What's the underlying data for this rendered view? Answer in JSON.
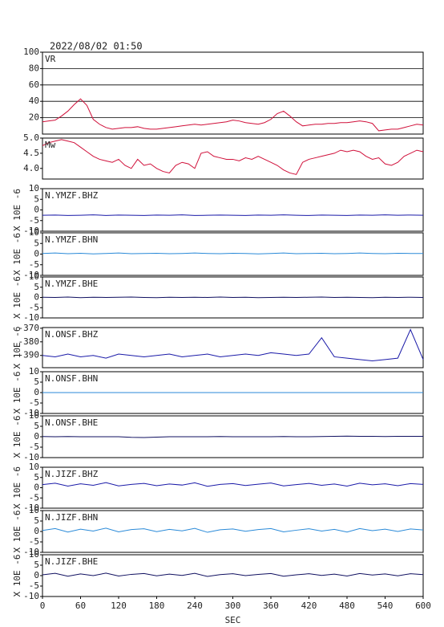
{
  "title": "2022/08/02 01:50",
  "chart_data": [
    {
      "type": "line",
      "label": "VR",
      "color": "#d0103a",
      "xlim": [
        0,
        600
      ],
      "ylim": [
        0,
        100
      ],
      "yticks": [
        20,
        40,
        60,
        80,
        100
      ],
      "grid": true,
      "x": [
        0,
        10,
        20,
        30,
        40,
        50,
        60,
        70,
        80,
        90,
        100,
        110,
        120,
        130,
        140,
        150,
        160,
        170,
        180,
        190,
        200,
        210,
        220,
        230,
        240,
        250,
        260,
        270,
        280,
        290,
        300,
        310,
        320,
        330,
        340,
        350,
        360,
        370,
        380,
        390,
        400,
        410,
        420,
        430,
        440,
        450,
        460,
        470,
        480,
        490,
        500,
        510,
        520,
        530,
        540,
        550,
        560,
        570,
        580,
        590,
        600
      ],
      "values": [
        15,
        16,
        17,
        22,
        28,
        36,
        43,
        35,
        18,
        12,
        8,
        6,
        7,
        8,
        8,
        9,
        7,
        6,
        6,
        7,
        8,
        9,
        10,
        11,
        12,
        11,
        12,
        13,
        14,
        15,
        17,
        16,
        14,
        13,
        12,
        14,
        18,
        25,
        28,
        22,
        15,
        10,
        11,
        12,
        12,
        13,
        13,
        14,
        14,
        15,
        16,
        15,
        13,
        4,
        5,
        6,
        6,
        8,
        10,
        12,
        11
      ]
    },
    {
      "type": "line",
      "label": "Mw",
      "color": "#d0103a",
      "xlim": [
        0,
        600
      ],
      "ylim": [
        3.65,
        5.0
      ],
      "yticks": [
        {
          "value": 5,
          "label": "5.0"
        },
        4.5,
        {
          "value": 4,
          "label": "4.0"
        }
      ],
      "grid": false,
      "x": [
        0,
        10,
        20,
        30,
        40,
        50,
        60,
        70,
        80,
        90,
        100,
        110,
        120,
        130,
        140,
        150,
        160,
        170,
        180,
        190,
        200,
        210,
        220,
        230,
        240,
        250,
        260,
        270,
        280,
        290,
        300,
        310,
        320,
        330,
        340,
        350,
        360,
        370,
        380,
        390,
        400,
        410,
        420,
        430,
        440,
        450,
        460,
        470,
        480,
        490,
        500,
        510,
        520,
        530,
        540,
        550,
        560,
        570,
        580,
        590,
        600
      ],
      "values": [
        4.75,
        4.85,
        4.9,
        4.95,
        4.9,
        4.85,
        4.7,
        4.55,
        4.4,
        4.3,
        4.25,
        4.2,
        4.3,
        4.1,
        4.0,
        4.3,
        4.1,
        4.15,
        4.0,
        3.9,
        3.85,
        4.1,
        4.2,
        4.15,
        4.0,
        4.5,
        4.55,
        4.4,
        4.35,
        4.3,
        4.3,
        4.25,
        4.35,
        4.3,
        4.4,
        4.3,
        4.2,
        4.1,
        3.95,
        3.85,
        3.8,
        4.2,
        4.3,
        4.35,
        4.4,
        4.45,
        4.5,
        4.6,
        4.55,
        4.6,
        4.55,
        4.4,
        4.3,
        4.35,
        4.15,
        4.1,
        4.2,
        4.4,
        4.5,
        4.6,
        4.55
      ]
    },
    {
      "type": "line",
      "label": "N.YMZF.BHZ",
      "ylabel": "X 10E -6",
      "color": "#1a1aa8",
      "xlim": [
        0,
        600
      ],
      "ylim": [
        -10,
        10
      ],
      "yticks": [
        -10,
        -5,
        0,
        5,
        10
      ],
      "grid": false,
      "x": [
        0,
        20,
        40,
        60,
        80,
        100,
        120,
        140,
        160,
        180,
        200,
        220,
        240,
        260,
        280,
        300,
        320,
        340,
        360,
        380,
        400,
        420,
        440,
        460,
        480,
        500,
        520,
        540,
        560,
        580,
        600
      ],
      "values": [
        -2.5,
        -2.4,
        -2.6,
        -2.5,
        -2.3,
        -2.6,
        -2.4,
        -2.5,
        -2.6,
        -2.4,
        -2.5,
        -2.3,
        -2.6,
        -2.5,
        -2.4,
        -2.5,
        -2.6,
        -2.4,
        -2.5,
        -2.3,
        -2.5,
        -2.6,
        -2.4,
        -2.5,
        -2.6,
        -2.4,
        -2.5,
        -2.3,
        -2.5,
        -2.4,
        -2.5
      ]
    },
    {
      "type": "line",
      "label": "N.YMZF.BHN",
      "ylabel": "X 10E -6",
      "color": "#2a8ad8",
      "xlim": [
        0,
        600
      ],
      "ylim": [
        -10,
        10
      ],
      "yticks": [
        -10,
        -5,
        0,
        5,
        10
      ],
      "grid": false,
      "x": [
        0,
        20,
        40,
        60,
        80,
        100,
        120,
        140,
        160,
        180,
        200,
        220,
        240,
        260,
        280,
        300,
        320,
        340,
        360,
        380,
        400,
        420,
        440,
        460,
        480,
        500,
        520,
        540,
        560,
        580,
        600
      ],
      "values": [
        0.3,
        0.5,
        0.2,
        0.4,
        0.1,
        0.3,
        0.5,
        0.2,
        0.3,
        0.4,
        0.2,
        0.3,
        0.5,
        0.3,
        0.2,
        0.4,
        0.3,
        0.1,
        0.3,
        0.5,
        0.2,
        0.3,
        0.4,
        0.2,
        0.3,
        0.5,
        0.3,
        0.2,
        0.4,
        0.3,
        0.3
      ]
    },
    {
      "type": "line",
      "label": "N.YMZF.BHE",
      "ylabel": "X 10E -6",
      "color": "#101060",
      "xlim": [
        0,
        600
      ],
      "ylim": [
        -10,
        10
      ],
      "yticks": [
        -10,
        -5,
        0,
        5,
        10
      ],
      "grid": false,
      "x": [
        0,
        20,
        40,
        60,
        80,
        100,
        120,
        140,
        160,
        180,
        200,
        220,
        240,
        260,
        280,
        300,
        320,
        340,
        360,
        380,
        400,
        420,
        440,
        460,
        480,
        500,
        520,
        540,
        560,
        580,
        600
      ],
      "values": [
        0.1,
        0,
        0.2,
        -0.1,
        0.1,
        0,
        0.1,
        0.2,
        0,
        -0.1,
        0.1,
        0,
        0.1,
        0,
        0.2,
        0,
        0.1,
        -0.1,
        0,
        0.1,
        0,
        0.1,
        0.2,
        0,
        0.1,
        0,
        -0.1,
        0.1,
        0,
        0.1,
        0
      ]
    },
    {
      "type": "line",
      "label": "N.ONSF.BHZ",
      "ylabel": "X 10E -6",
      "color": "#1a1aa8",
      "xlim": [
        0,
        600
      ],
      "ylim": [
        -399,
        -369.5
      ],
      "yticks": [
        -370,
        -380,
        -390
      ],
      "grid": false,
      "x": [
        0,
        20,
        40,
        60,
        80,
        100,
        120,
        140,
        160,
        180,
        200,
        220,
        240,
        260,
        280,
        300,
        320,
        340,
        360,
        380,
        400,
        420,
        440,
        460,
        480,
        500,
        520,
        540,
        560,
        580,
        600
      ],
      "values": [
        -390,
        -391,
        -389,
        -391,
        -390,
        -392,
        -389,
        -390,
        -391,
        -390,
        -389,
        -391,
        -390,
        -389,
        -391,
        -390,
        -389,
        -390,
        -388,
        -389,
        -390,
        -389,
        -377,
        -391,
        -392,
        -393,
        -394,
        -393,
        -392,
        -371,
        -393
      ]
    },
    {
      "type": "line",
      "label": "N.ONSF.BHN",
      "ylabel": "X 10E -6",
      "color": "#2a8ad8",
      "xlim": [
        0,
        600
      ],
      "ylim": [
        -10,
        10
      ],
      "yticks": [
        -10,
        -5,
        0,
        5,
        10
      ],
      "grid": false,
      "x": [
        0,
        20,
        40,
        60,
        80,
        100,
        120,
        140,
        160,
        180,
        200,
        220,
        240,
        260,
        280,
        300,
        320,
        340,
        360,
        380,
        400,
        420,
        440,
        460,
        480,
        500,
        520,
        540,
        560,
        580,
        600
      ],
      "values": [
        0,
        0,
        0,
        0,
        0,
        0,
        0,
        0,
        0,
        0,
        0,
        0,
        0,
        0,
        0,
        0,
        0,
        0,
        0,
        0,
        0,
        0,
        0,
        0,
        0,
        0,
        0,
        0,
        0,
        0,
        0
      ]
    },
    {
      "type": "line",
      "label": "N.ONSF.BHE",
      "ylabel": "X 10E -6",
      "color": "#101060",
      "xlim": [
        0,
        600
      ],
      "ylim": [
        -10,
        10
      ],
      "yticks": [
        -10,
        -5,
        0,
        5,
        10
      ],
      "grid": false,
      "x": [
        0,
        20,
        40,
        60,
        80,
        100,
        120,
        140,
        160,
        180,
        200,
        220,
        240,
        260,
        280,
        300,
        320,
        340,
        360,
        380,
        400,
        420,
        440,
        460,
        480,
        500,
        520,
        540,
        560,
        580,
        600
      ],
      "values": [
        0.1,
        0,
        0.1,
        0,
        0,
        0,
        0,
        -0.3,
        -0.4,
        -0.2,
        0,
        0,
        0,
        0,
        0.1,
        0,
        0,
        0,
        0,
        0.1,
        0,
        0,
        0.1,
        0.2,
        0.3,
        0.2,
        0.2,
        0.1,
        0.2,
        0.2,
        0.2
      ]
    },
    {
      "type": "line",
      "label": "N.JIZF.BHZ",
      "ylabel": "X 10E -6",
      "color": "#1a1aa8",
      "xlim": [
        0,
        600
      ],
      "ylim": [
        -10,
        10
      ],
      "yticks": [
        -10,
        -5,
        0,
        5,
        10
      ],
      "grid": false,
      "x": [
        0,
        20,
        40,
        60,
        80,
        100,
        120,
        140,
        160,
        180,
        200,
        220,
        240,
        260,
        280,
        300,
        320,
        340,
        360,
        380,
        400,
        420,
        440,
        460,
        480,
        500,
        520,
        540,
        560,
        580,
        600
      ],
      "values": [
        1.5,
        2.2,
        0.8,
        1.9,
        1.2,
        2.5,
        0.9,
        1.6,
        2.1,
        1.0,
        1.8,
        1.3,
        2.4,
        0.7,
        1.6,
        2.0,
        1.1,
        1.7,
        2.3,
        0.9,
        1.5,
        2.1,
        1.2,
        1.8,
        0.8,
        2.2,
        1.4,
        1.9,
        1.0,
        2.0,
        1.6
      ]
    },
    {
      "type": "line",
      "label": "N.JIZF.BHN",
      "ylabel": "X 10E -6",
      "color": "#2a8ad8",
      "xlim": [
        0,
        600
      ],
      "ylim": [
        -10,
        10
      ],
      "yticks": [
        -10,
        -5,
        0,
        5,
        10
      ],
      "grid": false,
      "x": [
        0,
        20,
        40,
        60,
        80,
        100,
        120,
        140,
        160,
        180,
        200,
        220,
        240,
        260,
        280,
        300,
        320,
        340,
        360,
        380,
        400,
        420,
        440,
        460,
        480,
        500,
        520,
        540,
        560,
        580,
        600
      ],
      "values": [
        0.5,
        1.4,
        -0.3,
        1.1,
        0.2,
        1.6,
        -0.2,
        0.9,
        1.3,
        -0.1,
        1.0,
        0.3,
        1.5,
        -0.4,
        0.8,
        1.2,
        0.1,
        0.9,
        1.4,
        -0.2,
        0.6,
        1.3,
        0.2,
        1.0,
        -0.3,
        1.4,
        0.4,
        1.1,
        0.0,
        1.2,
        0.7
      ]
    },
    {
      "type": "line",
      "label": "N.JIZF.BHE",
      "ylabel": "X 10E -6",
      "color": "#101060",
      "xlim": [
        0,
        600
      ],
      "ylim": [
        -10,
        10
      ],
      "yticks": [
        -10,
        -5,
        0,
        5,
        10
      ],
      "grid": false,
      "xticks": [
        0,
        60,
        120,
        180,
        240,
        300,
        360,
        420,
        480,
        540,
        600
      ],
      "xlabel": "SEC",
      "x": [
        0,
        20,
        40,
        60,
        80,
        100,
        120,
        140,
        160,
        180,
        200,
        220,
        240,
        260,
        280,
        300,
        320,
        340,
        360,
        380,
        400,
        420,
        440,
        460,
        480,
        500,
        520,
        540,
        560,
        580,
        600
      ],
      "values": [
        0.4,
        1.1,
        -0.3,
        0.8,
        0.0,
        1.2,
        -0.2,
        0.6,
        1.0,
        -0.1,
        0.7,
        0.1,
        1.1,
        -0.4,
        0.5,
        0.9,
        0.0,
        0.6,
        1.0,
        -0.3,
        0.4,
        0.9,
        0.1,
        0.7,
        -0.2,
        1.0,
        0.3,
        0.8,
        -0.1,
        0.9,
        0.5
      ]
    }
  ]
}
